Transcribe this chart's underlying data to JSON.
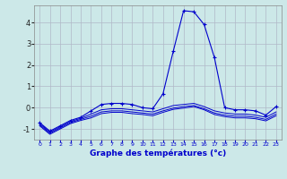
{
  "xlabel": "Graphe des températures (°c)",
  "background_color": "#cce8e8",
  "line_color": "#0000cc",
  "grid_color": "#b0b8c8",
  "x_ticks": [
    0,
    1,
    2,
    3,
    4,
    5,
    6,
    7,
    8,
    9,
    10,
    11,
    12,
    13,
    14,
    15,
    16,
    17,
    18,
    19,
    20,
    21,
    22,
    23
  ],
  "y_ticks": [
    -1,
    0,
    1,
    2,
    3,
    4
  ],
  "ylim": [
    -1.5,
    4.8
  ],
  "xlim": [
    -0.5,
    23.5
  ],
  "series": {
    "main": [
      -0.7,
      -1.1,
      -0.85,
      -0.6,
      -0.45,
      -0.15,
      0.15,
      0.2,
      0.2,
      0.15,
      0.0,
      -0.05,
      0.65,
      2.65,
      4.55,
      4.5,
      3.9,
      2.35,
      0.0,
      -0.1,
      -0.1,
      -0.15,
      -0.35,
      0.05
    ],
    "lower1": [
      -0.75,
      -1.15,
      -0.9,
      -0.65,
      -0.5,
      -0.3,
      -0.1,
      -0.05,
      -0.05,
      -0.1,
      -0.15,
      -0.2,
      -0.05,
      0.1,
      0.15,
      0.2,
      0.05,
      -0.15,
      -0.25,
      -0.3,
      -0.3,
      -0.35,
      -0.45,
      -0.2
    ],
    "lower2": [
      -0.8,
      -1.2,
      -0.95,
      -0.7,
      -0.55,
      -0.4,
      -0.2,
      -0.15,
      -0.15,
      -0.2,
      -0.25,
      -0.3,
      -0.15,
      -0.02,
      0.05,
      0.1,
      -0.05,
      -0.25,
      -0.35,
      -0.4,
      -0.4,
      -0.45,
      -0.55,
      -0.3
    ],
    "lower3": [
      -0.85,
      -1.25,
      -1.0,
      -0.75,
      -0.6,
      -0.48,
      -0.28,
      -0.22,
      -0.22,
      -0.28,
      -0.32,
      -0.38,
      -0.22,
      -0.08,
      -0.02,
      0.05,
      -0.1,
      -0.32,
      -0.42,
      -0.48,
      -0.48,
      -0.52,
      -0.62,
      -0.38
    ]
  }
}
